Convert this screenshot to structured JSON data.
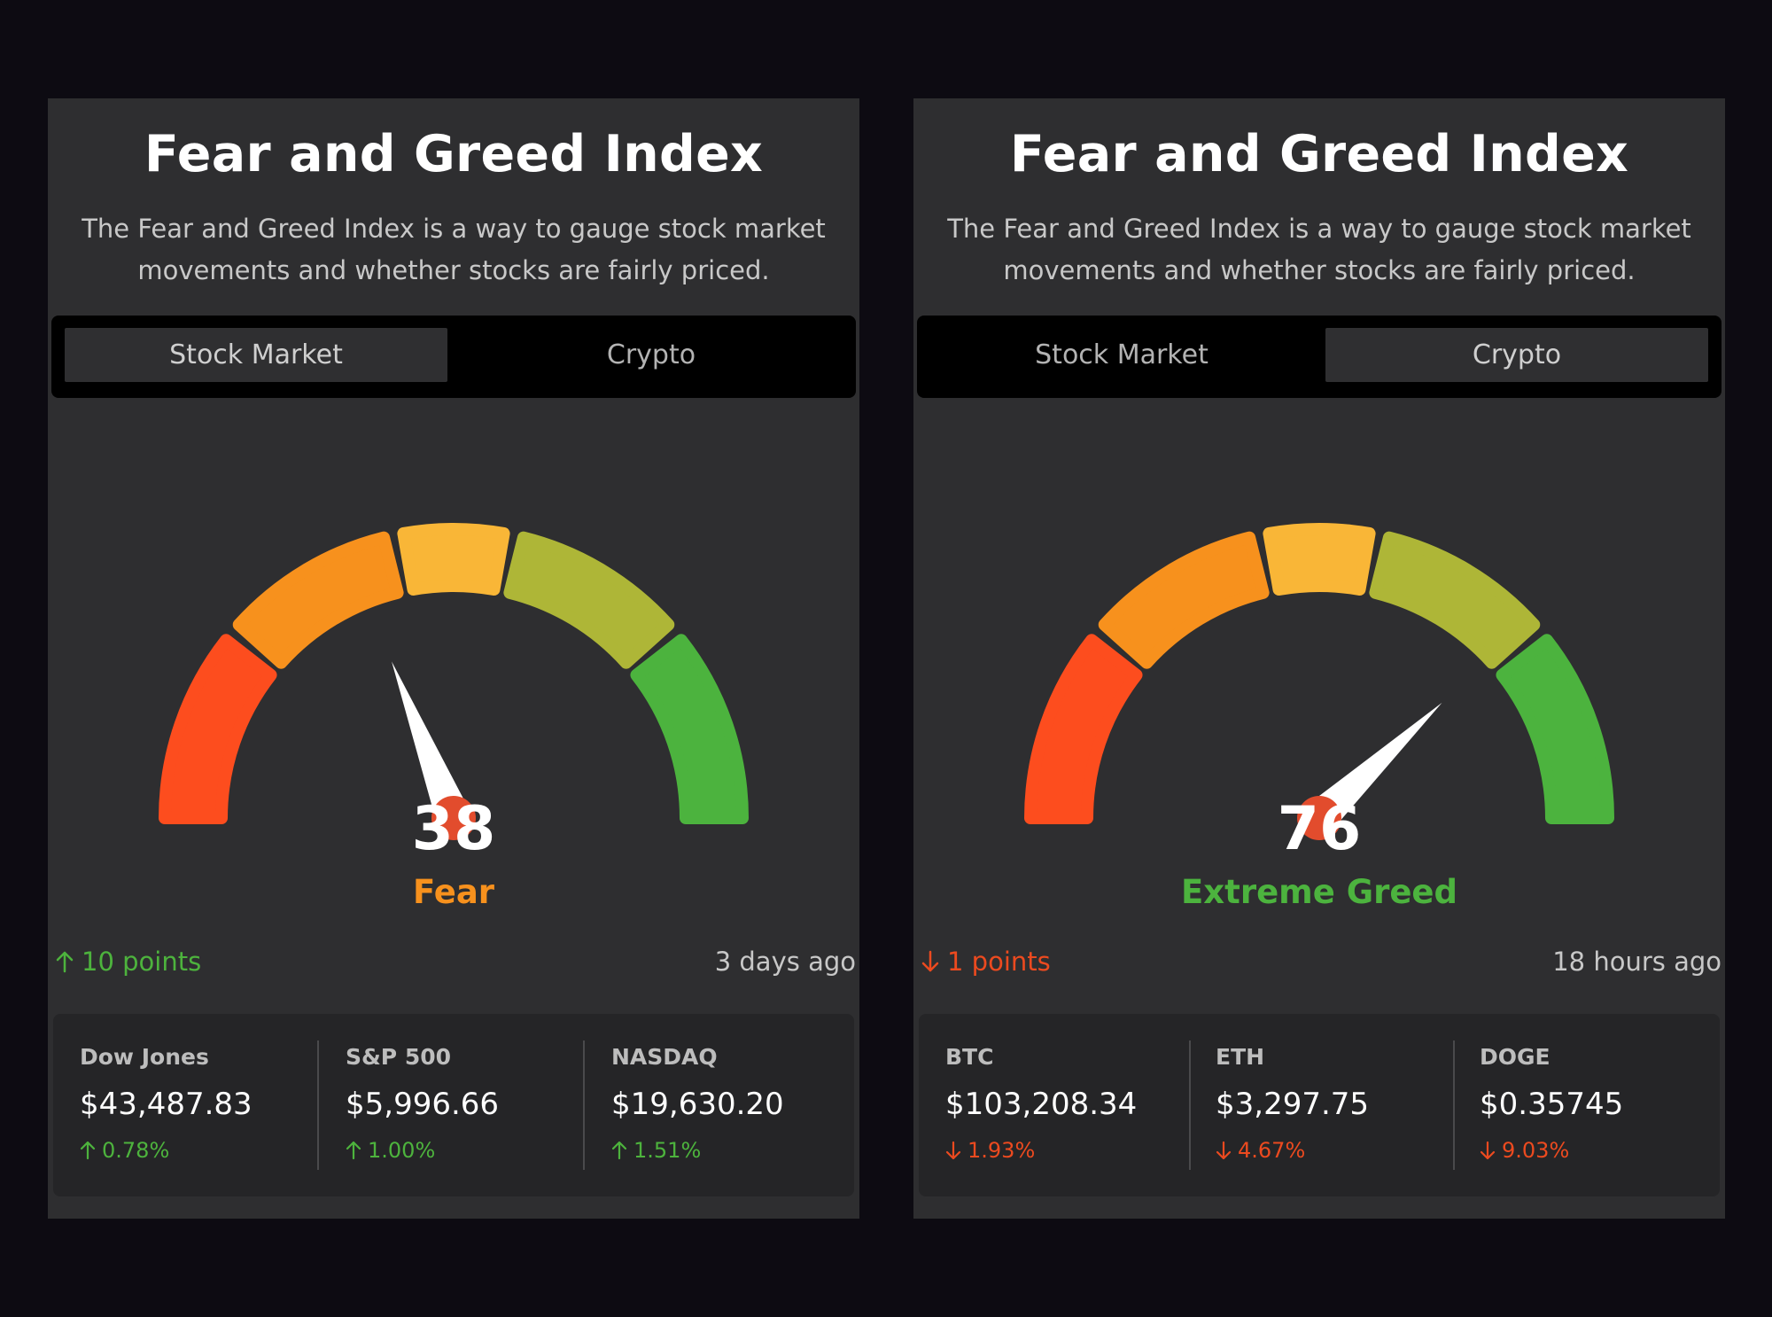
{
  "colors": {
    "background": "#0d0b12",
    "panel": "#2e2e30",
    "extreme_fear": "#fd4d1e",
    "fear": "#f7911d",
    "neutral": "#f9b637",
    "greed": "#aeb637",
    "extreme_greed": "#4cb33e",
    "needle_pivot": "#e24c2d",
    "up": "#4db33d",
    "down": "#ec4a1f"
  },
  "panels": [
    {
      "title": "Fear and Greed Index",
      "description_line1": "The Fear and Greed Index is a way to gauge stock market",
      "description_line2": "movements and whether stocks are fairly priced.",
      "tabs": [
        {
          "label": "Stock Market",
          "active": true
        },
        {
          "label": "Crypto",
          "active": false
        }
      ],
      "gauge": {
        "value": 38,
        "min": 0,
        "max": 100
      },
      "score": "38",
      "sentiment": "Fear",
      "sentiment_color": "#f7911d",
      "change": {
        "text": "10 points",
        "direction": "up",
        "icon": "arrow-up-icon"
      },
      "updated": "3 days ago",
      "tickers": [
        {
          "name": "Dow Jones",
          "price": "$43,487.83",
          "change": "0.78%",
          "direction": "up"
        },
        {
          "name": "S&P 500",
          "price": "$5,996.66",
          "change": "1.00%",
          "direction": "up"
        },
        {
          "name": "NASDAQ",
          "price": "$19,630.20",
          "change": "1.51%",
          "direction": "up"
        }
      ]
    },
    {
      "title": "Fear and Greed Index",
      "description_line1": "The Fear and Greed Index is a way to gauge stock market",
      "description_line2": "movements and whether stocks are fairly priced.",
      "tabs": [
        {
          "label": "Stock Market",
          "active": false
        },
        {
          "label": "Crypto",
          "active": true
        }
      ],
      "gauge": {
        "value": 76,
        "min": 0,
        "max": 100
      },
      "score": "76",
      "sentiment": "Extreme Greed",
      "sentiment_color": "#4cb33e",
      "change": {
        "text": "1 points",
        "direction": "down",
        "icon": "arrow-down-icon"
      },
      "updated": "18 hours ago",
      "tickers": [
        {
          "name": "BTC",
          "price": "$103,208.34",
          "change": "1.93%",
          "direction": "down"
        },
        {
          "name": "ETH",
          "price": "$3,297.75",
          "change": "4.67%",
          "direction": "down"
        },
        {
          "name": "DOGE",
          "price": "$0.35745",
          "change": "9.03%",
          "direction": "down"
        }
      ]
    }
  ]
}
